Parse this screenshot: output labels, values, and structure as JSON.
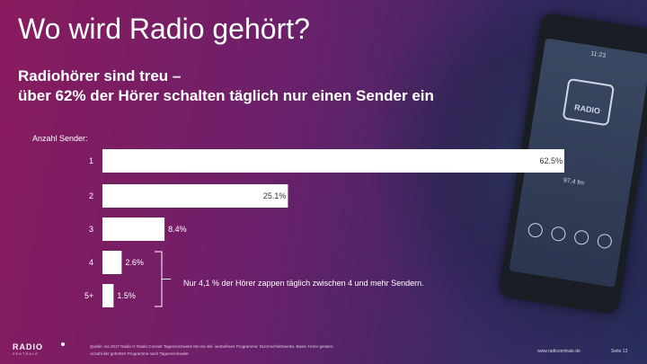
{
  "slide": {
    "title": "Wo wird Radio gehört?",
    "subtitle_line1": "Radiohörer sind treu –",
    "subtitle_line2": "über 62% der Hörer schalten täglich nur einen Sender ein",
    "source_line1": "Quelle: ma 2017 Radio II; Radio Consult Tagesreichweite Mo-Sa inkl. werbefreier Programme; Durchschnittswerte, Basis: Hörer gestern",
    "source_line2": "Anzahl der gehörten Programme nach Tagesreichweite",
    "url": "www.radiozentrale.de",
    "page": "Seite 13",
    "logo_main": "RADIO",
    "logo_sub": "ZENTRALE",
    "phone_time": "11:23",
    "phone_app_label": "RADIO",
    "phone_freq": "97,4 fm"
  },
  "chart_data": {
    "type": "bar",
    "orientation": "horizontal",
    "title": "",
    "label": "Anzahl Sender:",
    "categories": [
      "1",
      "2",
      "3",
      "4",
      "5+"
    ],
    "values": [
      62.5,
      25.1,
      8.4,
      2.6,
      1.5
    ],
    "value_labels": [
      "62.5%",
      "25.1%",
      "8.4%",
      "2.6%",
      "1.5%"
    ],
    "xlim": [
      0,
      62.5
    ],
    "bar_color": "#ffffff",
    "annotation": "Nur 4,1 % der Hörer zappen täglich zwischen 4 und mehr Sendern.",
    "annotation_brackets_categories": [
      "4",
      "5+"
    ],
    "grid": false,
    "legend": "none"
  }
}
